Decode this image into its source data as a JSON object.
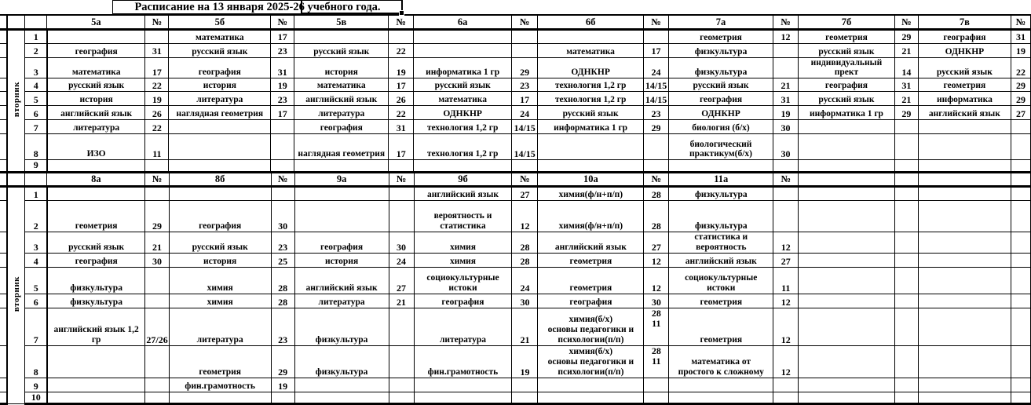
{
  "title": "Расписание на 13 января 2025-26 учебного года.",
  "colors": {
    "text": "#000000",
    "background": "#ffffff",
    "grid": "#000000"
  },
  "tables": [
    {
      "day": "вторник",
      "headers": [
        {
          "label": "5а",
          "num": "№"
        },
        {
          "label": "5б",
          "num": "№"
        },
        {
          "label": "5в",
          "num": "№"
        },
        {
          "label": "6а",
          "num": "№"
        },
        {
          "label": "6б",
          "num": "№"
        },
        {
          "label": "7а",
          "num": "№"
        },
        {
          "label": "7б",
          "num": "№"
        },
        {
          "label": "7в",
          "num": "№"
        }
      ],
      "rows": [
        {
          "period": "1",
          "cells": [
            [
              "",
              ""
            ],
            [
              "математика",
              "17"
            ],
            [
              "",
              ""
            ],
            [
              "",
              ""
            ],
            [
              "",
              ""
            ],
            [
              "геометрия",
              "12"
            ],
            [
              "геометрия",
              "29"
            ],
            [
              "география",
              "31"
            ]
          ]
        },
        {
          "period": "2",
          "cells": [
            [
              "география",
              "31"
            ],
            [
              "русский язык",
              "23"
            ],
            [
              "русский язык",
              "22"
            ],
            [
              "",
              ""
            ],
            [
              "математика",
              "17"
            ],
            [
              "физкультура",
              ""
            ],
            [
              "русский язык",
              "21"
            ],
            [
              "ОДНКНР",
              "19"
            ]
          ]
        },
        {
          "period": "3",
          "cells": [
            [
              "математика",
              "17"
            ],
            [
              "география",
              "31"
            ],
            [
              "история",
              "19"
            ],
            [
              "информатика 1 гр",
              "29"
            ],
            [
              "ОДНКНР",
              "24"
            ],
            [
              "физкультура",
              ""
            ],
            [
              "индивидуальный\nпрект",
              "14"
            ],
            [
              "русский язык",
              "22"
            ]
          ]
        },
        {
          "period": "4",
          "cells": [
            [
              "русский язык",
              "22"
            ],
            [
              "история",
              "19"
            ],
            [
              "математика",
              "17"
            ],
            [
              "русский язык",
              "23"
            ],
            [
              "технология 1,2 гр",
              "14/15"
            ],
            [
              "русский язык",
              "21"
            ],
            [
              "география",
              "31"
            ],
            [
              "геометрия",
              "29"
            ]
          ]
        },
        {
          "period": "5",
          "cells": [
            [
              "история",
              "19"
            ],
            [
              "литература",
              "23"
            ],
            [
              "английский язык",
              "26"
            ],
            [
              "математика",
              "17"
            ],
            [
              "технология 1,2 гр",
              "14/15"
            ],
            [
              "география",
              "31"
            ],
            [
              "русский язык",
              "21"
            ],
            [
              "информатика",
              "29"
            ]
          ]
        },
        {
          "period": "6",
          "cells": [
            [
              "английский язык",
              "26"
            ],
            [
              "наглядная геометрия",
              "17"
            ],
            [
              "литература",
              "22"
            ],
            [
              "ОДНКНР",
              "24"
            ],
            [
              "русский язык",
              "23"
            ],
            [
              "ОДНКНР",
              "19"
            ],
            [
              "информатика 1 гр",
              "29"
            ],
            [
              "английский язык",
              "27"
            ]
          ]
        },
        {
          "period": "7",
          "cells": [
            [
              "литература",
              "22"
            ],
            [
              "",
              ""
            ],
            [
              "география",
              "31"
            ],
            [
              "технология 1,2 гр",
              "14/15"
            ],
            [
              "информатика 1 гр",
              "29"
            ],
            [
              "биология (б/х)",
              "30"
            ],
            [
              "",
              ""
            ],
            [
              "",
              ""
            ]
          ]
        },
        {
          "period": "8",
          "cells": [
            [
              "ИЗО",
              "11"
            ],
            [
              "",
              ""
            ],
            [
              "наглядная геометрия",
              "17"
            ],
            [
              "технология 1,2 гр",
              "14/15"
            ],
            [
              "",
              ""
            ],
            [
              "биологический\nпрактикум(б/х)",
              "30"
            ],
            [
              "",
              ""
            ],
            [
              "",
              ""
            ]
          ]
        },
        {
          "period": "9",
          "cells": [
            [
              "",
              ""
            ],
            [
              "",
              ""
            ],
            [
              "",
              ""
            ],
            [
              "",
              ""
            ],
            [
              "",
              ""
            ],
            [
              "",
              ""
            ],
            [
              "",
              ""
            ],
            [
              "",
              ""
            ]
          ]
        }
      ]
    },
    {
      "day": "вторник",
      "headers": [
        {
          "label": "8а",
          "num": "№"
        },
        {
          "label": "8б",
          "num": "№"
        },
        {
          "label": "9а",
          "num": "№"
        },
        {
          "label": "9б",
          "num": "№"
        },
        {
          "label": "10а",
          "num": "№"
        },
        {
          "label": "11а",
          "num": "№"
        },
        {
          "label": "",
          "num": ""
        },
        {
          "label": "",
          "num": ""
        }
      ],
      "rows": [
        {
          "period": "1",
          "cells": [
            [
              "",
              ""
            ],
            [
              "",
              ""
            ],
            [
              "",
              ""
            ],
            [
              "английский язык",
              "27"
            ],
            [
              "химия(ф/н+п/п)",
              "28"
            ],
            [
              "физкультура",
              ""
            ],
            [
              "",
              ""
            ],
            [
              "",
              ""
            ]
          ]
        },
        {
          "period": "2",
          "cells": [
            [
              "геометрия",
              "29"
            ],
            [
              "география",
              "30"
            ],
            [
              "",
              ""
            ],
            [
              "вероятность и\nстатистика",
              "12"
            ],
            [
              "химия(ф/н+п/п)",
              "28"
            ],
            [
              "физкультура",
              ""
            ],
            [
              "",
              ""
            ],
            [
              "",
              ""
            ]
          ]
        },
        {
          "period": "3",
          "cells": [
            [
              "русский язык",
              "21"
            ],
            [
              "русский язык",
              "23"
            ],
            [
              "география",
              "30"
            ],
            [
              "химия",
              "28"
            ],
            [
              "английский язык",
              "27"
            ],
            [
              "статистика и\nвероятность",
              "12"
            ],
            [
              "",
              ""
            ],
            [
              "",
              ""
            ]
          ]
        },
        {
          "period": "4",
          "cells": [
            [
              "география",
              "30"
            ],
            [
              "история",
              "25"
            ],
            [
              "история",
              "24"
            ],
            [
              "химия",
              "28"
            ],
            [
              "геометрия",
              "12"
            ],
            [
              "английский язык",
              "27"
            ],
            [
              "",
              ""
            ],
            [
              "",
              ""
            ]
          ]
        },
        {
          "period": "5",
          "cells": [
            [
              "физкультура",
              ""
            ],
            [
              "химия",
              "28"
            ],
            [
              "английский язык",
              "27"
            ],
            [
              "социокультурные\nистоки",
              "24"
            ],
            [
              "геометрия",
              "12"
            ],
            [
              "социокультурные\nистоки",
              "11"
            ],
            [
              "",
              ""
            ],
            [
              "",
              ""
            ]
          ]
        },
        {
          "period": "6",
          "cells": [
            [
              "физкультура",
              ""
            ],
            [
              "химия",
              "28"
            ],
            [
              "литература",
              "21"
            ],
            [
              "география",
              "30"
            ],
            [
              "география",
              "30"
            ],
            [
              "геометрия",
              "12"
            ],
            [
              "",
              ""
            ],
            [
              "",
              ""
            ]
          ]
        },
        {
          "period": "7",
          "cells": [
            [
              "английский язык 1,2 гр",
              "27/26"
            ],
            [
              "литература",
              "23"
            ],
            [
              "физкультура",
              ""
            ],
            [
              "литература",
              "21"
            ],
            [
              "химия(б/х)\nосновы педагогики и\nпсихологии(п/п)",
              "28\n11"
            ],
            [
              "геометрия",
              "12"
            ],
            [
              "",
              ""
            ],
            [
              "",
              ""
            ]
          ]
        },
        {
          "period": "8",
          "cells": [
            [
              "",
              ""
            ],
            [
              "геометрия",
              "29"
            ],
            [
              "физкультура",
              ""
            ],
            [
              "фин.грамотность",
              "19"
            ],
            [
              "химия(б/х)\nосновы педагогики и\nпсихологии(п/п)",
              "28\n11"
            ],
            [
              "математика от\nпростого к сложному",
              "12"
            ],
            [
              "",
              ""
            ],
            [
              "",
              ""
            ]
          ]
        },
        {
          "period": "9",
          "cells": [
            [
              "",
              ""
            ],
            [
              "фин.грамотность",
              "19"
            ],
            [
              "",
              ""
            ],
            [
              "",
              ""
            ],
            [
              "",
              ""
            ],
            [
              "",
              ""
            ],
            [
              "",
              ""
            ],
            [
              "",
              ""
            ]
          ]
        },
        {
          "period": "10",
          "cells": [
            [
              "",
              ""
            ],
            [
              "",
              ""
            ],
            [
              "",
              ""
            ],
            [
              "",
              ""
            ],
            [
              "",
              ""
            ],
            [
              "",
              ""
            ],
            [
              "",
              ""
            ],
            [
              "",
              ""
            ]
          ]
        }
      ]
    }
  ]
}
